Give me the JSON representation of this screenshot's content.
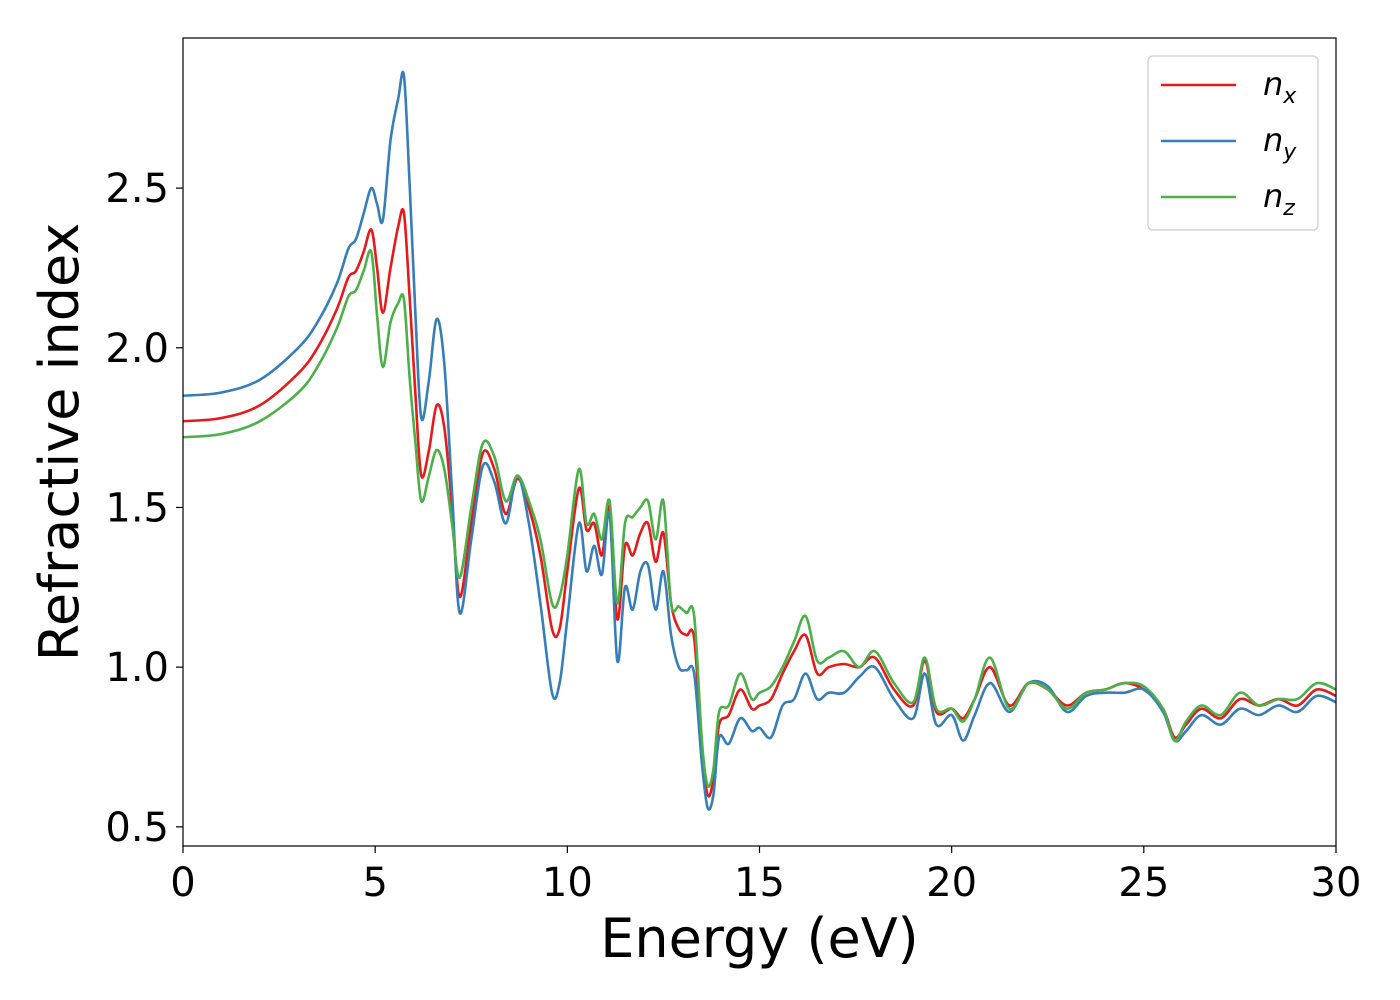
{
  "chart_data": {
    "type": "line",
    "xlabel": "Energy (eV)",
    "ylabel": "Refractive index",
    "xlim": [
      0,
      30
    ],
    "ylim": [
      0.44,
      2.97
    ],
    "xticks": [
      0,
      5,
      10,
      15,
      20,
      25,
      30
    ],
    "xtick_labels": [
      "0",
      "5",
      "10",
      "15",
      "20",
      "25",
      "30"
    ],
    "yticks": [
      0.5,
      1.0,
      1.5,
      2.0,
      2.5
    ],
    "ytick_labels": [
      "0.5",
      "1.0",
      "1.5",
      "2.0",
      "2.5"
    ],
    "grid": false,
    "legend_position": "top-right",
    "x": [
      0,
      1,
      2,
      3,
      3.5,
      4,
      4.3,
      4.5,
      4.7,
      4.9,
      5.05,
      5.2,
      5.4,
      5.6,
      5.75,
      5.9,
      6.05,
      6.2,
      6.4,
      6.6,
      6.8,
      7.0,
      7.2,
      7.5,
      7.8,
      8.1,
      8.4,
      8.7,
      9.0,
      9.3,
      9.6,
      9.8,
      10.0,
      10.3,
      10.5,
      10.7,
      10.9,
      11.1,
      11.3,
      11.5,
      11.7,
      11.9,
      12.1,
      12.3,
      12.5,
      12.7,
      12.9,
      13.1,
      13.3,
      13.5,
      13.65,
      13.8,
      13.95,
      14.2,
      14.5,
      14.8,
      15.0,
      15.3,
      15.6,
      15.9,
      16.2,
      16.5,
      16.8,
      17.2,
      17.6,
      18.0,
      18.5,
      19.0,
      19.3,
      19.6,
      20.0,
      20.3,
      20.6,
      21.0,
      21.5,
      22.0,
      22.5,
      23.0,
      23.5,
      24.0,
      24.5,
      25.0,
      25.5,
      25.8,
      26.1,
      26.5,
      27.0,
      27.5,
      28.0,
      28.5,
      29.0,
      29.5,
      30.0
    ],
    "series": [
      {
        "name": "n_x",
        "label_base": "n",
        "label_sub": "x",
        "color": "#e41a1c",
        "values": [
          1.77,
          1.78,
          1.82,
          1.92,
          2.0,
          2.12,
          2.22,
          2.24,
          2.3,
          2.37,
          2.25,
          2.11,
          2.25,
          2.38,
          2.42,
          2.15,
          1.85,
          1.6,
          1.68,
          1.82,
          1.75,
          1.5,
          1.22,
          1.45,
          1.67,
          1.62,
          1.48,
          1.59,
          1.5,
          1.35,
          1.12,
          1.12,
          1.3,
          1.56,
          1.43,
          1.45,
          1.35,
          1.5,
          1.15,
          1.38,
          1.35,
          1.42,
          1.45,
          1.33,
          1.42,
          1.2,
          1.12,
          1.1,
          1.09,
          0.75,
          0.6,
          0.65,
          0.82,
          0.85,
          0.93,
          0.87,
          0.88,
          0.9,
          0.98,
          1.05,
          1.1,
          0.98,
          1.0,
          1.01,
          1.0,
          1.03,
          0.93,
          0.88,
          1.02,
          0.86,
          0.87,
          0.84,
          0.9,
          1.0,
          0.88,
          0.95,
          0.93,
          0.88,
          0.92,
          0.93,
          0.95,
          0.93,
          0.87,
          0.78,
          0.82,
          0.87,
          0.84,
          0.9,
          0.88,
          0.9,
          0.88,
          0.93,
          0.91
        ]
      },
      {
        "name": "n_y",
        "label_base": "n",
        "label_sub": "y",
        "color": "#377eb8",
        "values": [
          1.85,
          1.86,
          1.9,
          2.0,
          2.08,
          2.2,
          2.31,
          2.34,
          2.42,
          2.5,
          2.45,
          2.4,
          2.65,
          2.78,
          2.85,
          2.5,
          2.1,
          1.78,
          1.9,
          2.09,
          1.95,
          1.55,
          1.17,
          1.4,
          1.63,
          1.58,
          1.45,
          1.6,
          1.45,
          1.2,
          0.92,
          0.95,
          1.15,
          1.45,
          1.3,
          1.38,
          1.29,
          1.48,
          1.02,
          1.25,
          1.18,
          1.3,
          1.32,
          1.18,
          1.3,
          1.1,
          1.0,
          0.99,
          0.98,
          0.7,
          0.56,
          0.6,
          0.78,
          0.76,
          0.84,
          0.8,
          0.81,
          0.78,
          0.88,
          0.9,
          0.98,
          0.9,
          0.92,
          0.92,
          0.97,
          1.0,
          0.9,
          0.84,
          0.98,
          0.82,
          0.85,
          0.77,
          0.85,
          0.95,
          0.86,
          0.95,
          0.94,
          0.86,
          0.91,
          0.92,
          0.92,
          0.93,
          0.86,
          0.77,
          0.8,
          0.85,
          0.82,
          0.87,
          0.85,
          0.88,
          0.86,
          0.91,
          0.89
        ]
      },
      {
        "name": "n_z",
        "label_base": "n",
        "label_sub": "z",
        "color": "#4daf4a",
        "values": [
          1.72,
          1.73,
          1.77,
          1.86,
          1.94,
          2.06,
          2.16,
          2.18,
          2.24,
          2.3,
          2.1,
          1.94,
          2.08,
          2.14,
          2.15,
          1.9,
          1.7,
          1.52,
          1.6,
          1.68,
          1.62,
          1.45,
          1.28,
          1.5,
          1.7,
          1.66,
          1.52,
          1.6,
          1.52,
          1.4,
          1.2,
          1.22,
          1.35,
          1.62,
          1.45,
          1.48,
          1.4,
          1.52,
          1.2,
          1.45,
          1.47,
          1.5,
          1.52,
          1.4,
          1.52,
          1.2,
          1.19,
          1.17,
          1.16,
          0.77,
          0.63,
          0.68,
          0.86,
          0.88,
          0.98,
          0.9,
          0.92,
          0.94,
          1.0,
          1.08,
          1.16,
          1.02,
          1.03,
          1.05,
          1.0,
          1.05,
          0.95,
          0.89,
          1.03,
          0.87,
          0.87,
          0.83,
          0.9,
          1.03,
          0.87,
          0.95,
          0.93,
          0.87,
          0.92,
          0.93,
          0.95,
          0.94,
          0.87,
          0.77,
          0.83,
          0.88,
          0.85,
          0.92,
          0.88,
          0.9,
          0.9,
          0.95,
          0.93
        ]
      }
    ]
  }
}
